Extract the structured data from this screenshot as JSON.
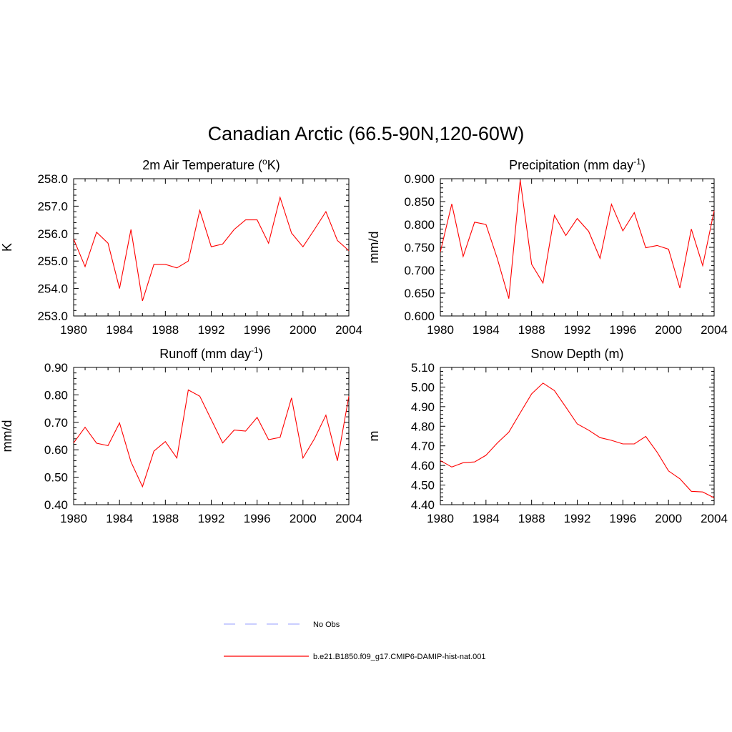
{
  "figure": {
    "title": "Canadian Arctic (66.5-90N,120-60W)"
  },
  "legend": {
    "items": [
      {
        "label": "No Obs",
        "color": "#aab0ff",
        "dash": "dashed"
      },
      {
        "label": "b.e21.B1850.f09_g17.CMIP6-DAMIP-hist-nat.001",
        "color": "#ff0000",
        "dash": "solid"
      }
    ]
  },
  "chart_data": [
    {
      "type": "line",
      "title": "2m Air Temperature (",
      "title_super": "o",
      "title_after": "K)",
      "ylabel": "K",
      "xlim": [
        1980,
        2004
      ],
      "ylim": [
        253.0,
        258.0
      ],
      "xticks": [
        1980,
        1984,
        1988,
        1992,
        1996,
        2000,
        2004
      ],
      "yticks": [
        "253.0",
        "254.0",
        "255.0",
        "256.0",
        "257.0",
        "258.0"
      ],
      "color": "#ff0000",
      "x": [
        1980,
        1981,
        1982,
        1983,
        1984,
        1985,
        1986,
        1987,
        1988,
        1989,
        1990,
        1991,
        1992,
        1993,
        1994,
        1995,
        1996,
        1997,
        1998,
        1999,
        2000,
        2001,
        2002,
        2003,
        2004
      ],
      "values": [
        255.8,
        254.8,
        256.05,
        255.65,
        254.0,
        256.15,
        253.55,
        254.88,
        254.88,
        254.75,
        255.0,
        256.85,
        255.52,
        255.62,
        256.15,
        256.5,
        256.5,
        255.65,
        257.32,
        256.02,
        255.52,
        256.15,
        256.8,
        255.75,
        255.38
      ]
    },
    {
      "type": "line",
      "title": "Precipitation (mm day",
      "title_super": "-1",
      "title_after": ")",
      "ylabel": "mm/d",
      "xlim": [
        1980,
        2004
      ],
      "ylim": [
        0.6,
        0.9
      ],
      "xticks": [
        1980,
        1984,
        1988,
        1992,
        1996,
        2000,
        2004
      ],
      "yticks": [
        "0.600",
        "0.650",
        "0.700",
        "0.750",
        "0.800",
        "0.850",
        "0.900"
      ],
      "color": "#ff0000",
      "x": [
        1980,
        1981,
        1982,
        1983,
        1984,
        1985,
        1986,
        1987,
        1988,
        1989,
        1990,
        1991,
        1992,
        1993,
        1994,
        1995,
        1996,
        1997,
        1998,
        1999,
        2000,
        2001,
        2002,
        2003,
        2004
      ],
      "values": [
        0.74,
        0.845,
        0.73,
        0.805,
        0.8,
        0.725,
        0.638,
        0.897,
        0.713,
        0.672,
        0.82,
        0.776,
        0.813,
        0.785,
        0.726,
        0.844,
        0.786,
        0.826,
        0.749,
        0.754,
        0.746,
        0.661,
        0.79,
        0.71,
        0.83
      ]
    },
    {
      "type": "line",
      "title": "Runoff (mm day",
      "title_super": "-1",
      "title_after": ")",
      "ylabel": "mm/d",
      "xlim": [
        1980,
        2004
      ],
      "ylim": [
        0.4,
        0.9
      ],
      "xticks": [
        1980,
        1984,
        1988,
        1992,
        1996,
        2000,
        2004
      ],
      "yticks": [
        "0.40",
        "0.50",
        "0.60",
        "0.70",
        "0.80",
        "0.90"
      ],
      "color": "#ff0000",
      "x": [
        1980,
        1981,
        1982,
        1983,
        1984,
        1985,
        1986,
        1987,
        1988,
        1989,
        1990,
        1991,
        1992,
        1993,
        1994,
        1995,
        1996,
        1997,
        1998,
        1999,
        2000,
        2001,
        2002,
        2003,
        2004
      ],
      "values": [
        0.625,
        0.682,
        0.624,
        0.615,
        0.698,
        0.556,
        0.466,
        0.595,
        0.63,
        0.57,
        0.818,
        0.795,
        0.71,
        0.625,
        0.672,
        0.668,
        0.718,
        0.637,
        0.645,
        0.789,
        0.57,
        0.64,
        0.726,
        0.56,
        0.795
      ]
    },
    {
      "type": "line",
      "title": "Snow Depth (m)",
      "title_super": "",
      "title_after": "",
      "ylabel": "m",
      "xlim": [
        1980,
        2004
      ],
      "ylim": [
        4.4,
        5.1
      ],
      "xticks": [
        1980,
        1984,
        1988,
        1992,
        1996,
        2000,
        2004
      ],
      "yticks": [
        "4.40",
        "4.50",
        "4.60",
        "4.70",
        "4.80",
        "4.90",
        "5.00",
        "5.10"
      ],
      "color": "#ff0000",
      "x": [
        1980,
        1981,
        1982,
        1983,
        1984,
        1985,
        1986,
        1987,
        1988,
        1989,
        1990,
        1991,
        1992,
        1993,
        1994,
        1995,
        1996,
        1997,
        1998,
        1999,
        2000,
        2001,
        2002,
        2003,
        2004
      ],
      "values": [
        4.625,
        4.592,
        4.614,
        4.618,
        4.652,
        4.715,
        4.77,
        4.868,
        4.965,
        5.02,
        4.982,
        4.898,
        4.812,
        4.78,
        4.742,
        4.728,
        4.71,
        4.71,
        4.748,
        4.668,
        4.572,
        4.532,
        4.468,
        4.465,
        4.435
      ]
    }
  ]
}
